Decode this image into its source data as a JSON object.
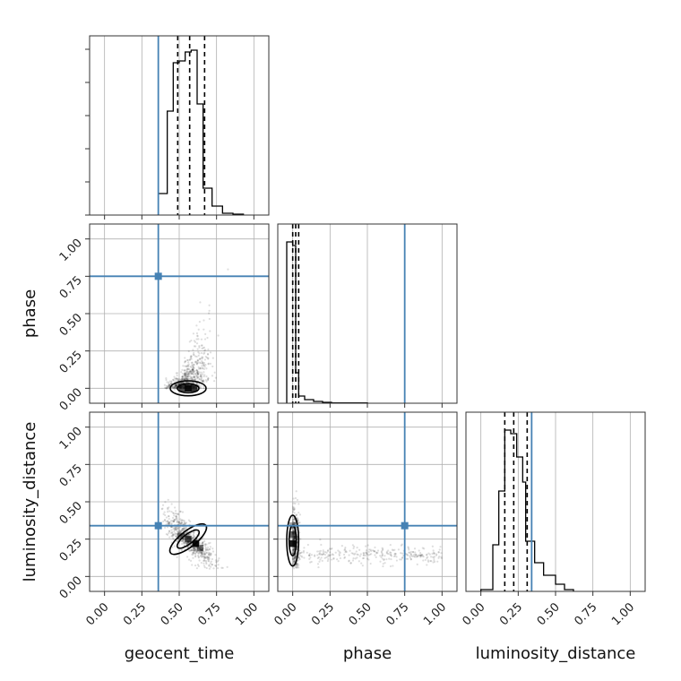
{
  "chart_data": {
    "type": "corner",
    "parameters": [
      "geocent_time",
      "phase",
      "luminosity_distance"
    ],
    "axis_labels": {
      "geocent_time": "geocent_time",
      "phase": "phase",
      "luminosity_distance": "luminosity_distance"
    },
    "xlim": [
      -0.1,
      1.1
    ],
    "ylim": [
      -0.1,
      1.1
    ],
    "ticks": [
      0.0,
      0.25,
      0.5,
      0.75,
      1.0
    ],
    "tick_labels": [
      "0.00",
      "0.25",
      "0.50",
      "0.75",
      "1.00"
    ],
    "grid": true,
    "truths": {
      "geocent_time": 0.36,
      "phase": 0.75,
      "luminosity_distance": 0.34
    },
    "quantiles": {
      "geocent_time": [
        0.49,
        0.57,
        0.67
      ],
      "phase": [
        0.0,
        0.02,
        0.04
      ],
      "luminosity_distance": [
        0.16,
        0.22,
        0.31
      ]
    },
    "histograms": {
      "geocent_time": {
        "bin_edges": [
          0.36,
          0.42,
          0.46,
          0.5,
          0.54,
          0.58,
          0.62,
          0.66,
          0.72,
          0.79,
          0.86,
          0.93
        ],
        "heights": [
          0.12,
          0.58,
          0.85,
          0.86,
          0.91,
          0.92,
          0.62,
          0.15,
          0.05,
          0.01,
          0.005
        ]
      },
      "phase": {
        "bin_edges": [
          -0.04,
          0.0,
          0.02,
          0.04,
          0.08,
          0.14,
          0.2,
          0.26,
          0.5
        ],
        "heights": [
          0.9,
          0.88,
          0.17,
          0.04,
          0.02,
          0.01,
          0.005,
          0.002
        ]
      },
      "luminosity_distance": {
        "bin_edges": [
          0.0,
          0.08,
          0.12,
          0.16,
          0.2,
          0.24,
          0.28,
          0.3,
          0.36,
          0.42,
          0.5,
          0.56,
          0.62
        ],
        "heights": [
          0.01,
          0.26,
          0.56,
          0.9,
          0.88,
          0.75,
          0.61,
          0.28,
          0.16,
          0.09,
          0.04,
          0.01
        ]
      }
    },
    "panels": [
      {
        "x": "geocent_time",
        "y": "phase",
        "contour_center": [
          0.56,
          0.0
        ],
        "contour_halfwidths": [
          0.12,
          0.05
        ],
        "scatter_note": "posterior samples",
        "scatter_region": {
          "x": [
            0.4,
            0.85
          ],
          "y": [
            -0.02,
            1.0
          ]
        }
      },
      {
        "x": "geocent_time",
        "y": "luminosity_distance",
        "contour_center": [
          0.56,
          0.25
        ],
        "contour_halfwidths": [
          0.12,
          0.12
        ],
        "scatter_region": {
          "x": [
            0.38,
            0.9
          ],
          "y": [
            0.05,
            0.6
          ]
        }
      },
      {
        "x": "phase",
        "y": "luminosity_distance",
        "contour_center": [
          0.0,
          0.24
        ],
        "contour_halfwidths": [
          0.04,
          0.17
        ],
        "scatter_region": {
          "x": [
            -0.02,
            1.0
          ],
          "y": [
            0.05,
            0.62
          ]
        }
      }
    ],
    "colors": {
      "truth": "#4682b4",
      "histogram": "#000000",
      "grid": "#b0b0b0",
      "density": "#000000"
    }
  }
}
